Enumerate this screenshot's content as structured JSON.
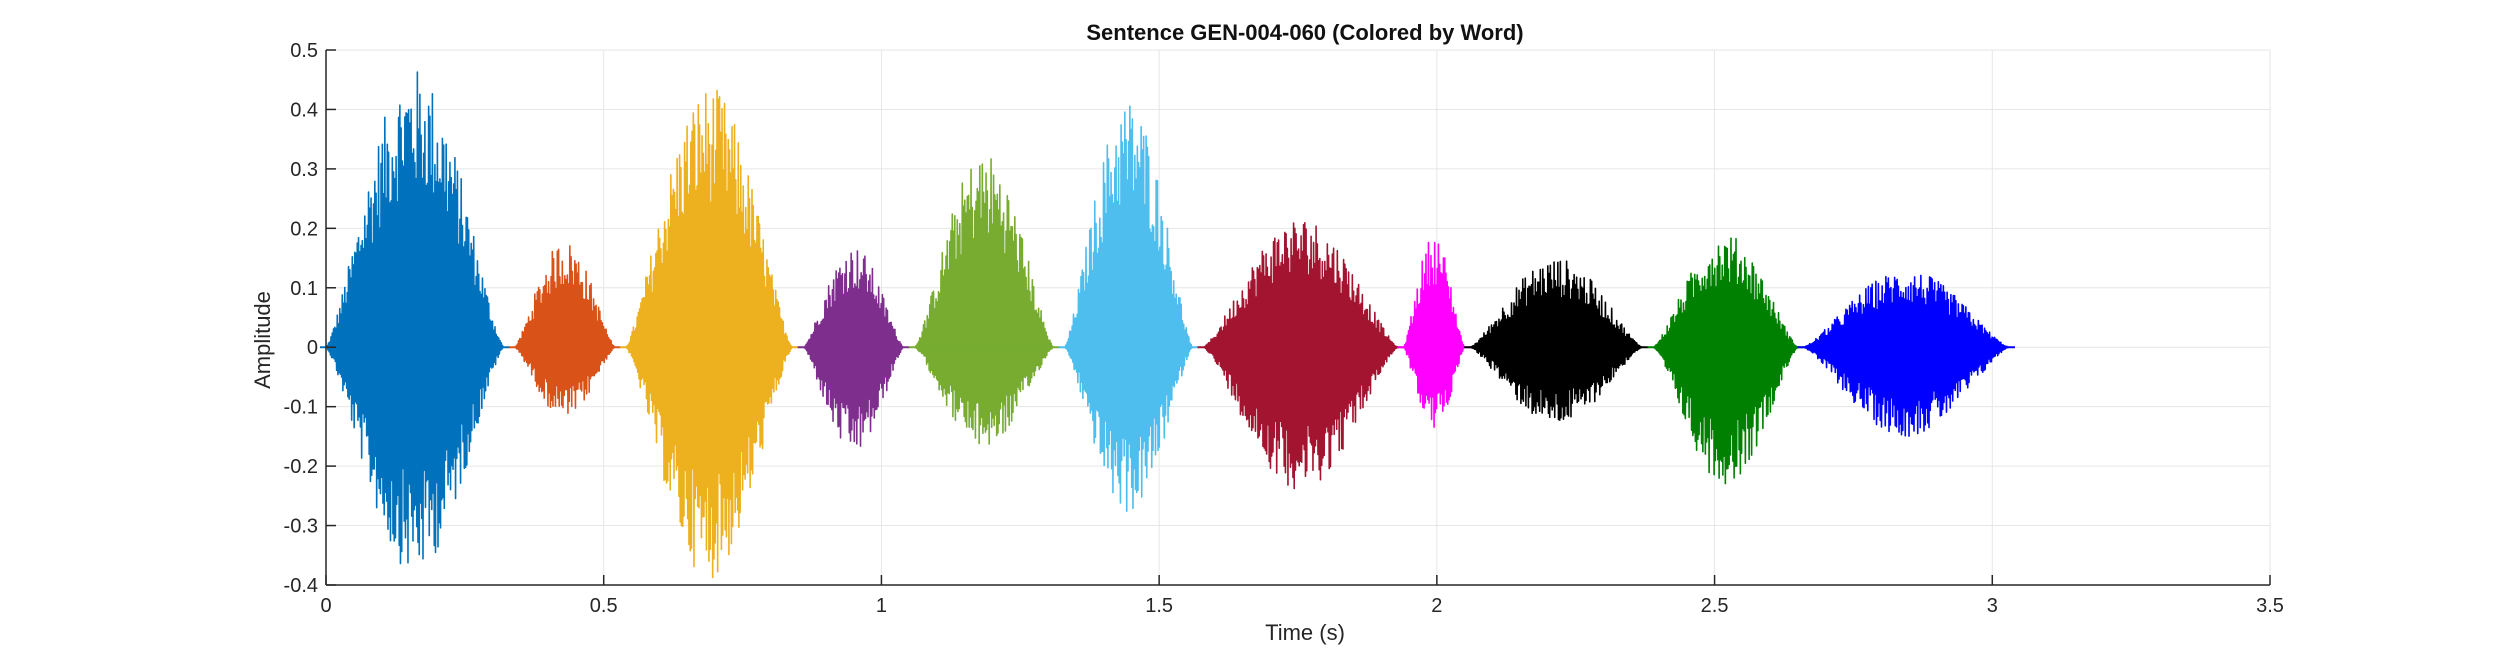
{
  "chart_data": {
    "type": "line",
    "title": "Sentence GEN-004-060 (Colored by Word)",
    "xlabel": "Time (s)",
    "ylabel": "Amplitude",
    "xlim": [
      0,
      3.5
    ],
    "ylim": [
      -0.4,
      0.5
    ],
    "xticks": [
      0,
      0.5,
      1,
      1.5,
      2,
      2.5,
      3,
      3.5
    ],
    "yticks": [
      -0.4,
      -0.3,
      -0.2,
      -0.1,
      0,
      0.1,
      0.2,
      0.3,
      0.4,
      0.5
    ],
    "xtick_labels": [
      "0",
      "0.5",
      "1",
      "1.5",
      "2",
      "2.5",
      "3",
      "3.5"
    ],
    "ytick_labels": [
      "-0.4",
      "-0.3",
      "-0.2",
      "-0.1",
      "0",
      "0.1",
      "0.2",
      "0.3",
      "0.4",
      "0.5"
    ],
    "grid": true,
    "series": [
      {
        "color": "#0072BD",
        "t_start": 0.0,
        "t_end": 0.32,
        "max": 0.47,
        "min": -0.38
      },
      {
        "color": "#D95319",
        "t_start": 0.34,
        "t_end": 0.52,
        "max": 0.18,
        "min": -0.12
      },
      {
        "color": "#EDB120",
        "t_start": 0.54,
        "t_end": 0.84,
        "max": 0.44,
        "min": -0.39
      },
      {
        "color": "#7E2F8E",
        "t_start": 0.86,
        "t_end": 1.04,
        "max": 0.17,
        "min": -0.18
      },
      {
        "color": "#77AC30",
        "t_start": 1.06,
        "t_end": 1.31,
        "max": 0.33,
        "min": -0.17
      },
      {
        "color": "#4DBEEE",
        "t_start": 1.33,
        "t_end": 1.56,
        "max": 0.42,
        "min": -0.28
      },
      {
        "color": "#A2142F",
        "t_start": 1.58,
        "t_end": 1.93,
        "max": 0.22,
        "min": -0.24
      },
      {
        "color": "#FF00FF",
        "t_start": 1.94,
        "t_end": 2.05,
        "max": 0.19,
        "min": -0.14
      },
      {
        "color": "#000000",
        "t_start": 2.06,
        "t_end": 2.37,
        "max": 0.15,
        "min": -0.13
      },
      {
        "color": "#008000",
        "t_start": 2.39,
        "t_end": 2.65,
        "max": 0.19,
        "min": -0.23
      },
      {
        "color": "#0000FF",
        "t_start": 2.66,
        "t_end": 3.03,
        "max": 0.13,
        "min": -0.15
      }
    ]
  },
  "colors": {
    "axis": "#262626",
    "grid": "#e6e6e6",
    "background": "#ffffff"
  }
}
